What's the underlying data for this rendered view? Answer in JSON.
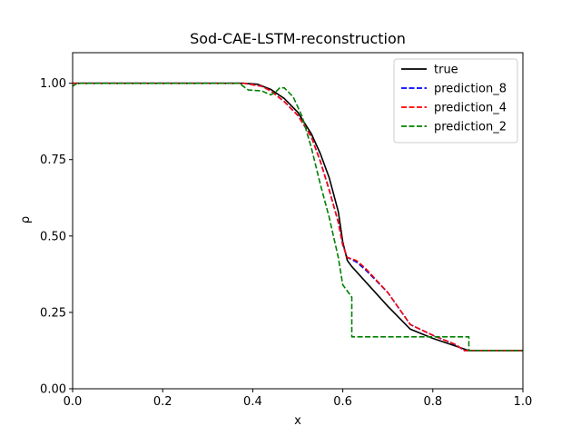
{
  "chart_data": {
    "type": "line",
    "title": "Sod-CAE-LSTM-reconstruction",
    "xlabel": "x",
    "ylabel": "ρ",
    "xlim": [
      0.0,
      1.0
    ],
    "ylim": [
      0.0,
      1.1
    ],
    "xticks": [
      0.0,
      0.2,
      0.4,
      0.6,
      0.8,
      1.0
    ],
    "xtick_labels": [
      "0.0",
      "0.2",
      "0.4",
      "0.6",
      "0.8",
      "1.0"
    ],
    "yticks": [
      0.0,
      0.25,
      0.5,
      0.75,
      1.0
    ],
    "ytick_labels": [
      "0.00",
      "0.25",
      "0.50",
      "0.75",
      "1.00"
    ],
    "grid": false,
    "legend_position": "top-right",
    "series": [
      {
        "name": "true",
        "color": "#000000",
        "dash": "solid",
        "x": [
          0.0,
          0.38,
          0.41,
          0.44,
          0.47,
          0.5,
          0.53,
          0.55,
          0.57,
          0.59,
          0.6,
          0.61,
          0.62,
          0.66,
          0.7,
          0.75,
          0.8,
          0.85,
          0.88,
          1.0
        ],
        "y": [
          1.0,
          1.0,
          0.997,
          0.98,
          0.95,
          0.905,
          0.835,
          0.77,
          0.69,
          0.58,
          0.48,
          0.42,
          0.4,
          0.335,
          0.27,
          0.195,
          0.165,
          0.14,
          0.125,
          0.125
        ]
      },
      {
        "name": "prediction_8",
        "color": "#0000ff",
        "dash": "dashed",
        "x": [
          0.0,
          0.38,
          0.42,
          0.44,
          0.47,
          0.5,
          0.53,
          0.55,
          0.57,
          0.59,
          0.6,
          0.61,
          0.63,
          0.65,
          0.7,
          0.75,
          0.8,
          0.85,
          0.87,
          1.0
        ],
        "y": [
          1.0,
          1.0,
          0.99,
          0.975,
          0.94,
          0.895,
          0.825,
          0.745,
          0.65,
          0.545,
          0.47,
          0.43,
          0.415,
          0.39,
          0.315,
          0.21,
          0.175,
          0.145,
          0.125,
          0.125
        ]
      },
      {
        "name": "prediction_4",
        "color": "#ff0000",
        "dash": "dashed",
        "x": [
          0.0,
          0.38,
          0.42,
          0.44,
          0.47,
          0.5,
          0.53,
          0.55,
          0.57,
          0.59,
          0.6,
          0.61,
          0.63,
          0.65,
          0.7,
          0.75,
          0.8,
          0.85,
          0.87,
          1.0
        ],
        "y": [
          1.0,
          1.0,
          0.99,
          0.975,
          0.94,
          0.895,
          0.825,
          0.745,
          0.65,
          0.545,
          0.47,
          0.43,
          0.42,
          0.395,
          0.315,
          0.21,
          0.175,
          0.145,
          0.125,
          0.125
        ]
      },
      {
        "name": "prediction_2",
        "color": "#008000",
        "dash": "dashed",
        "x": [
          0.0,
          0.005,
          0.01,
          0.37,
          0.39,
          0.42,
          0.44,
          0.45,
          0.46,
          0.47,
          0.49,
          0.51,
          0.53,
          0.55,
          0.57,
          0.59,
          0.6,
          0.61,
          0.62,
          0.62,
          0.7,
          0.8,
          0.88,
          0.88,
          1.0
        ],
        "y": [
          0.99,
          0.995,
          1.0,
          1.0,
          0.978,
          0.975,
          0.962,
          0.97,
          0.985,
          0.985,
          0.955,
          0.89,
          0.79,
          0.67,
          0.56,
          0.43,
          0.34,
          0.32,
          0.3,
          0.17,
          0.17,
          0.17,
          0.17,
          0.125,
          0.125
        ]
      }
    ]
  }
}
